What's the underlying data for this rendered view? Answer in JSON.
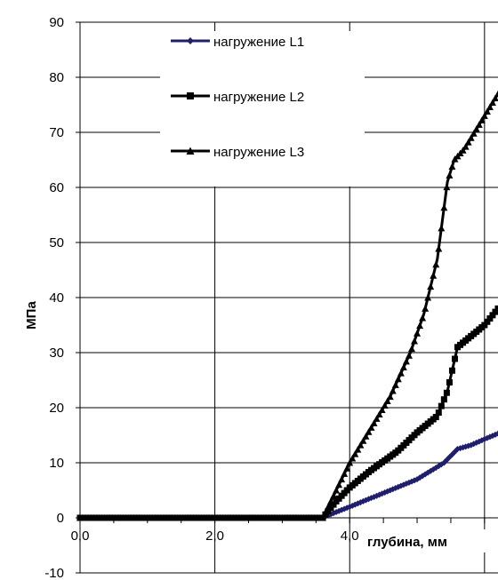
{
  "chart_data": {
    "type": "line",
    "title": "",
    "xlabel": "глубина, мм",
    "ylabel": "МПа",
    "xlim": [
      0,
      6.2
    ],
    "ylim": [
      -10,
      90
    ],
    "x_ticks": [
      "0,0",
      "2,0",
      "4,0"
    ],
    "x_tick_values": [
      0,
      2,
      4
    ],
    "y_ticks": [
      "90",
      "80",
      "70",
      "60",
      "50",
      "40",
      "30",
      "20",
      "10",
      "0",
      "-10"
    ],
    "y_tick_values": [
      90,
      80,
      70,
      60,
      50,
      40,
      30,
      20,
      10,
      0,
      -10
    ],
    "grid": true,
    "legend_position": "top",
    "series": [
      {
        "name": "нагружение L1",
        "color": "#1f1f6e",
        "marker": "diamond",
        "points": [
          [
            0,
            0
          ],
          [
            3.6,
            0
          ],
          [
            3.75,
            0.8
          ],
          [
            4.0,
            2
          ],
          [
            4.5,
            4.5
          ],
          [
            5.0,
            7
          ],
          [
            5.4,
            10
          ],
          [
            5.6,
            12.5
          ],
          [
            5.8,
            13.2
          ],
          [
            6.0,
            14.3
          ],
          [
            6.2,
            15.3
          ]
        ]
      },
      {
        "name": "нагружение L2",
        "color": "#000000",
        "marker": "square",
        "points": [
          [
            0,
            0
          ],
          [
            3.6,
            0
          ],
          [
            3.8,
            3
          ],
          [
            4.0,
            5.5
          ],
          [
            4.3,
            8.5
          ],
          [
            4.7,
            12
          ],
          [
            5.0,
            15.5
          ],
          [
            5.3,
            18.5
          ],
          [
            5.45,
            23
          ],
          [
            5.6,
            31
          ],
          [
            5.8,
            33
          ],
          [
            6.0,
            35
          ],
          [
            6.2,
            38
          ]
        ]
      },
      {
        "name": "нагружение L3",
        "color": "#000000",
        "marker": "triangle",
        "points": [
          [
            0,
            0
          ],
          [
            3.6,
            0
          ],
          [
            3.8,
            5
          ],
          [
            4.0,
            10
          ],
          [
            4.3,
            16
          ],
          [
            4.6,
            22
          ],
          [
            4.9,
            30
          ],
          [
            5.1,
            37
          ],
          [
            5.3,
            47
          ],
          [
            5.45,
            61
          ],
          [
            5.55,
            65
          ],
          [
            5.7,
            67
          ],
          [
            5.9,
            71
          ],
          [
            6.2,
            77
          ]
        ]
      }
    ]
  }
}
